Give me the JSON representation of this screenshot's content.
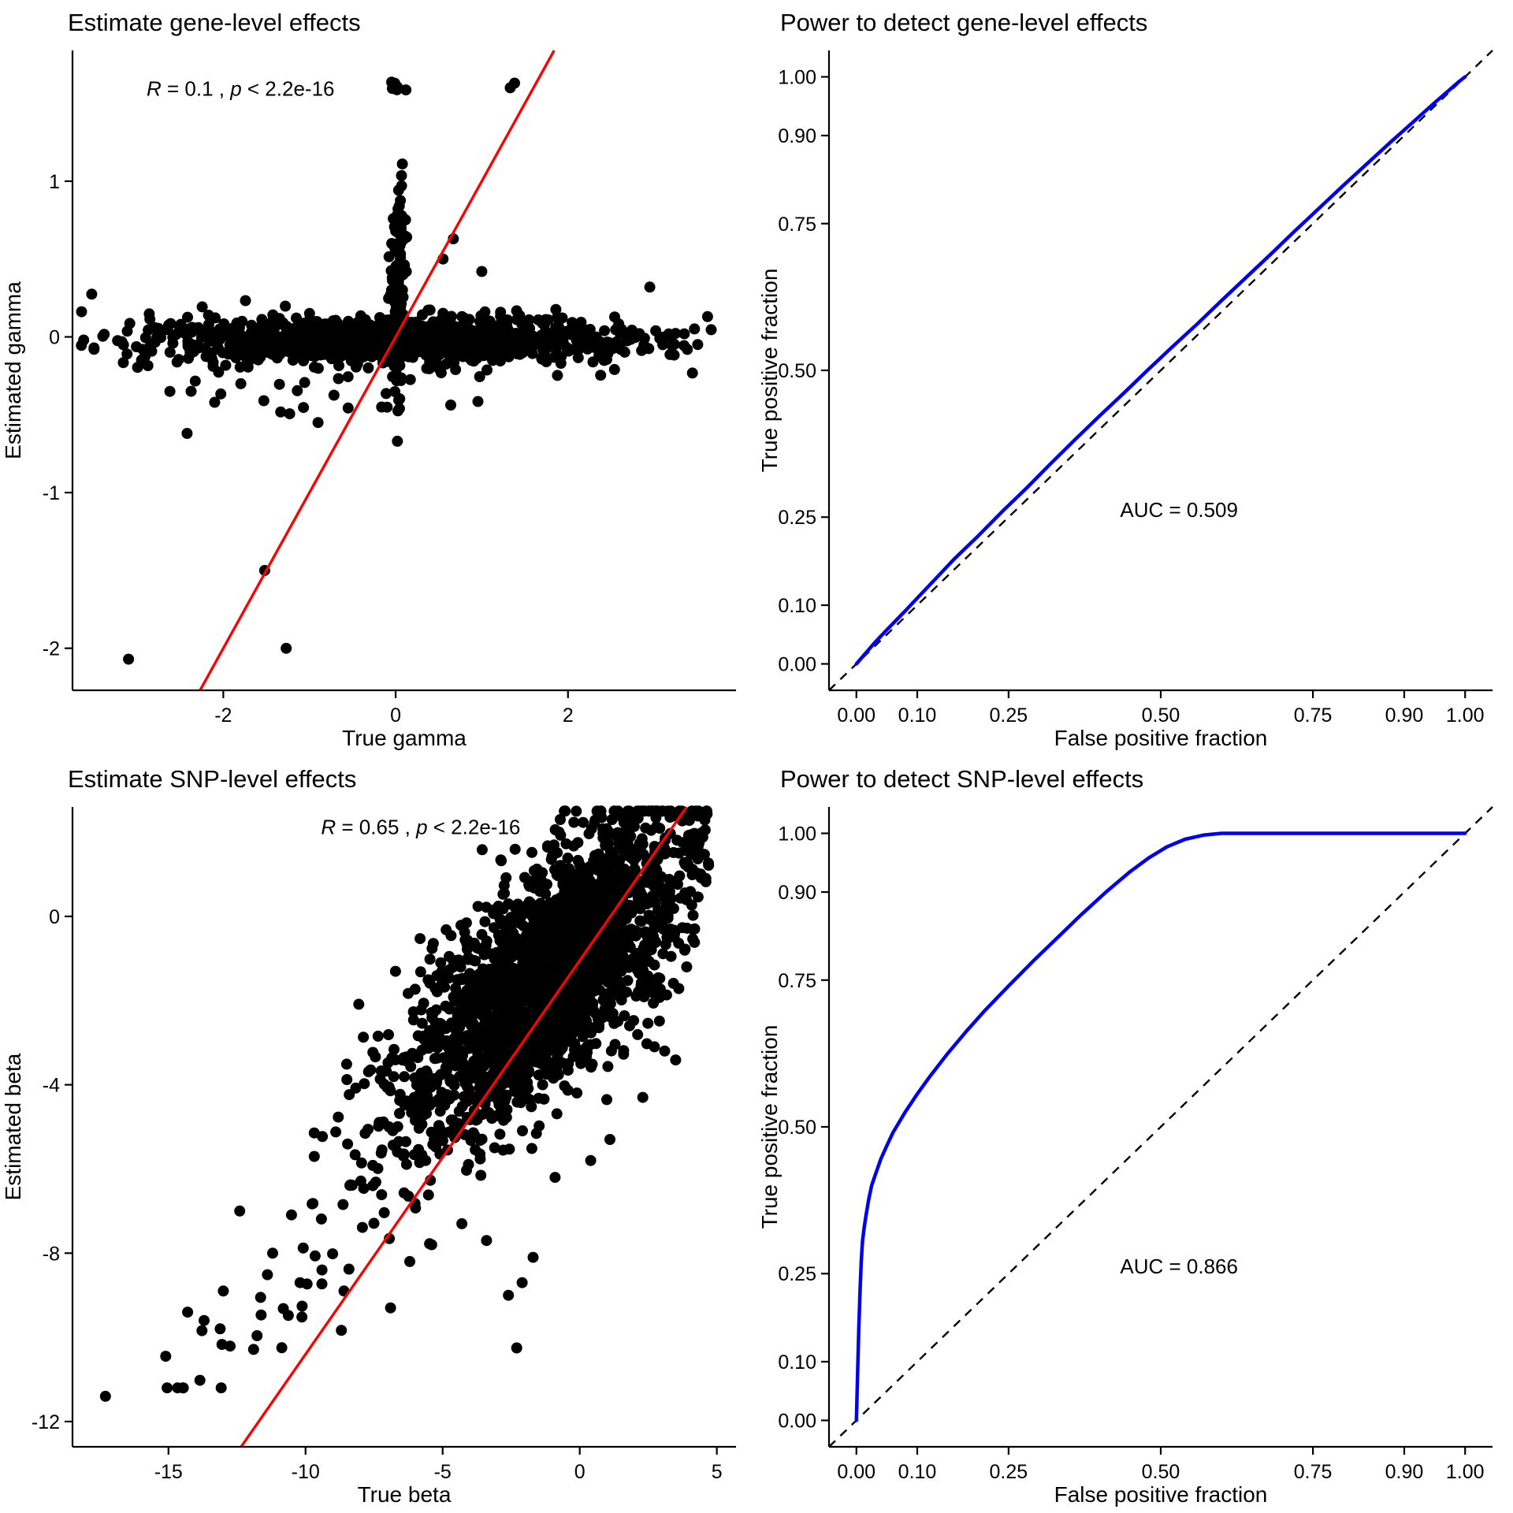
{
  "chart_data": [
    {
      "type": "scatter",
      "title": "Estimate gene-level effects",
      "xlabel": "True gamma",
      "ylabel": "Estimated gamma",
      "xlim": [
        -3.75,
        3.95
      ],
      "ylim": [
        -2.27,
        1.84
      ],
      "xticks": [
        {
          "v": -2,
          "l": "-2"
        },
        {
          "v": 0,
          "l": "0"
        },
        {
          "v": 2,
          "l": "2"
        }
      ],
      "yticks": [
        {
          "v": -2,
          "l": "-2"
        },
        {
          "v": -1,
          "l": "-1"
        },
        {
          "v": 0,
          "l": "0"
        },
        {
          "v": 1,
          "l": "1"
        }
      ],
      "annotation": {
        "parts": [
          {
            "t": "R",
            "i": true
          },
          {
            "t": " = 0.1 , "
          },
          {
            "t": "p",
            "i": true
          },
          {
            "t": " < 2.2e-16"
          }
        ],
        "x": -1.8,
        "y": 1.55
      },
      "fit_line": {
        "from": [
          -2.27,
          -2.27
        ],
        "to": [
          1.84,
          1.84
        ],
        "color": "#FF0000"
      },
      "point_color": "#000000",
      "point_radius": 7,
      "clusters": [
        {
          "n": 950,
          "seed": 11,
          "kind": "xy",
          "x": {
            "dist": "normal",
            "mean": 0,
            "sd": 1.25,
            "clip": [
              -3.6,
              3.7
            ]
          },
          "y": {
            "dist": "normal",
            "mean": -0.02,
            "sd": 0.07,
            "clip": [
              -0.35,
              0.28
            ]
          }
        },
        {
          "n": 260,
          "seed": 12,
          "kind": "xy",
          "x": {
            "dist": "normal",
            "mean": 0,
            "sd": 2.0,
            "clip": [
              -3.65,
              3.78
            ]
          },
          "y": {
            "dist": "normal",
            "mean": -0.03,
            "sd": 0.09,
            "clip": [
              -0.42,
              0.3
            ]
          }
        },
        {
          "n": 120,
          "seed": 13,
          "kind": "xy",
          "x": {
            "dist": "normal",
            "mean": 0.03,
            "sd": 0.04,
            "clip": [
              -0.12,
              0.18
            ]
          },
          "y": {
            "dist": "normal",
            "mean": 0.18,
            "sd": 0.38,
            "clip": [
              -0.66,
              1.3
            ]
          }
        },
        {
          "n": 14,
          "seed": 14,
          "kind": "xy",
          "x": {
            "dist": "normal",
            "mean": 0.04,
            "sd": 0.05,
            "clip": [
              -0.1,
              0.2
            ]
          },
          "y": {
            "dist": "uniform",
            "min": 0.35,
            "max": 0.78
          }
        },
        {
          "n": 7,
          "seed": 15,
          "kind": "xy",
          "x": {
            "dist": "uniform",
            "min": -0.05,
            "max": 0.13
          },
          "y": {
            "dist": "uniform",
            "min": 1.55,
            "max": 1.67
          }
        },
        {
          "n": 22,
          "seed": 16,
          "kind": "xy",
          "x": {
            "dist": "normal",
            "mean": -0.7,
            "sd": 1.0,
            "clip": [
              -2.7,
              1.6
            ]
          },
          "y": {
            "dist": "uniform",
            "min": -0.5,
            "max": -0.2
          }
        }
      ],
      "outliers": [
        [
          -3.1,
          -2.07
        ],
        [
          -1.27,
          -2.0
        ],
        [
          -1.52,
          -1.5
        ],
        [
          1.33,
          1.6
        ],
        [
          1.38,
          1.63
        ],
        [
          -2.42,
          -0.62
        ],
        [
          0.02,
          -0.67
        ],
        [
          0.67,
          0.63
        ],
        [
          -2.1,
          -0.42
        ],
        [
          -2.62,
          -0.35
        ],
        [
          3.62,
          0.13
        ],
        [
          3.35,
          0.02
        ],
        [
          -3.5,
          -0.08
        ],
        [
          -3.62,
          -0.02
        ],
        [
          2.95,
          0.32
        ],
        [
          3.1,
          -0.05
        ],
        [
          0.55,
          0.5
        ],
        [
          -0.9,
          -0.55
        ],
        [
          1.0,
          0.42
        ],
        [
          0.08,
          0.75
        ],
        [
          0.0,
          0.68
        ]
      ]
    },
    {
      "type": "line",
      "title": "Power to detect gene-level effects",
      "xlabel": "False positive fraction",
      "ylabel": "True positive fraction",
      "xlim": [
        -0.045,
        1.045
      ],
      "ylim": [
        -0.045,
        1.045
      ],
      "xticks": [
        {
          "v": 0,
          "l": "0.00"
        },
        {
          "v": 0.1,
          "l": "0.10"
        },
        {
          "v": 0.25,
          "l": "0.25"
        },
        {
          "v": 0.5,
          "l": "0.50"
        },
        {
          "v": 0.75,
          "l": "0.75"
        },
        {
          "v": 0.9,
          "l": "0.90"
        },
        {
          "v": 1,
          "l": "1.00"
        }
      ],
      "yticks": [
        {
          "v": 0,
          "l": "0.00"
        },
        {
          "v": 0.1,
          "l": "0.10"
        },
        {
          "v": 0.25,
          "l": "0.25"
        },
        {
          "v": 0.5,
          "l": "0.50"
        },
        {
          "v": 0.75,
          "l": "0.75"
        },
        {
          "v": 0.9,
          "l": "0.90"
        },
        {
          "v": 1,
          "l": "1.00"
        }
      ],
      "annotation": {
        "parts": [
          {
            "t": "AUC = 0.509"
          }
        ],
        "x": 0.53,
        "y": 0.25
      },
      "ref_line": {
        "from": [
          -0.045,
          -0.045
        ],
        "to": [
          1.045,
          1.045
        ],
        "dashed": true
      },
      "auc": 0.509,
      "series": [
        {
          "name": "ROC",
          "color": "#0000EE",
          "width": 4.5,
          "points": [
            [
              0,
              0
            ],
            [
              0.01,
              0.012
            ],
            [
              0.03,
              0.036
            ],
            [
              0.05,
              0.058
            ],
            [
              0.08,
              0.09
            ],
            [
              0.1,
              0.112
            ],
            [
              0.13,
              0.145
            ],
            [
              0.16,
              0.178
            ],
            [
              0.2,
              0.218
            ],
            [
              0.24,
              0.26
            ],
            [
              0.28,
              0.3
            ],
            [
              0.32,
              0.342
            ],
            [
              0.36,
              0.383
            ],
            [
              0.4,
              0.423
            ],
            [
              0.44,
              0.462
            ],
            [
              0.48,
              0.502
            ],
            [
              0.52,
              0.541
            ],
            [
              0.56,
              0.579
            ],
            [
              0.6,
              0.619
            ],
            [
              0.64,
              0.658
            ],
            [
              0.68,
              0.697
            ],
            [
              0.72,
              0.737
            ],
            [
              0.76,
              0.776
            ],
            [
              0.8,
              0.815
            ],
            [
              0.84,
              0.853
            ],
            [
              0.88,
              0.891
            ],
            [
              0.92,
              0.928
            ],
            [
              0.95,
              0.956
            ],
            [
              0.97,
              0.974
            ],
            [
              0.99,
              0.992
            ],
            [
              1,
              1
            ]
          ]
        }
      ]
    },
    {
      "type": "scatter",
      "title": "Estimate SNP-level effects",
      "xlabel": "True beta",
      "ylabel": "Estimated beta",
      "xlim": [
        -18.5,
        5.7
      ],
      "ylim": [
        -12.6,
        2.6
      ],
      "xticks": [
        {
          "v": -15,
          "l": "-15"
        },
        {
          "v": -10,
          "l": "-10"
        },
        {
          "v": -5,
          "l": "-5"
        },
        {
          "v": 0,
          "l": "0"
        },
        {
          "v": 5,
          "l": "5"
        }
      ],
      "yticks": [
        {
          "v": 0,
          "l": "0"
        },
        {
          "v": -4,
          "l": "-4"
        },
        {
          "v": -8,
          "l": "-8"
        },
        {
          "v": -12,
          "l": "-12"
        }
      ],
      "annotation": {
        "parts": [
          {
            "t": "R",
            "i": true
          },
          {
            "t": " = 0.65 , "
          },
          {
            "t": "p",
            "i": true
          },
          {
            "t": " < 2.2e-16"
          }
        ],
        "x": -5.8,
        "y": 1.95
      },
      "fit_line": {
        "from": [
          -12.35,
          -12.6
        ],
        "to": [
          3.9,
          2.6
        ],
        "color": "#FF0000"
      },
      "point_color": "#000000",
      "point_radius": 7,
      "clusters": [
        {
          "n": 2100,
          "seed": 31,
          "kind": "linear",
          "x": {
            "dist": "normal",
            "mean": -1.0,
            "sd": 2.7,
            "clip": [
              -9.8,
              4.7
            ]
          },
          "slope": 0.52,
          "intercept": -0.7,
          "noise_sd": 1.35,
          "yclip": [
            -8.8,
            2.5
          ]
        },
        {
          "n": 140,
          "seed": 32,
          "kind": "linear",
          "x": {
            "dist": "normal",
            "mean": -2.5,
            "sd": 3.4,
            "clip": [
              -12.5,
              4.5
            ]
          },
          "slope": 0.6,
          "intercept": -1.2,
          "noise_sd": 1.8,
          "yclip": [
            -10.0,
            2.3
          ]
        },
        {
          "n": 46,
          "seed": 33,
          "kind": "linear",
          "x": {
            "dist": "uniform",
            "min": -15.2,
            "max": -6.0
          },
          "slope": 0.76,
          "intercept": -0.8,
          "noise_sd": 0.85,
          "yclip": [
            -11.2,
            -3.2
          ]
        }
      ],
      "outliers": [
        [
          -17.3,
          -11.4
        ],
        [
          -15.1,
          -10.45
        ],
        [
          -14.3,
          -9.4
        ],
        [
          -13.7,
          -9.6
        ],
        [
          -13.0,
          -8.9
        ],
        [
          -2.3,
          -10.25
        ],
        [
          -2.6,
          -9.0
        ],
        [
          -2.1,
          -8.7
        ],
        [
          -1.7,
          -8.1
        ],
        [
          -3.4,
          -7.7
        ],
        [
          -4.3,
          -7.3
        ],
        [
          -5.4,
          -7.8
        ],
        [
          -0.9,
          -6.2
        ],
        [
          0.4,
          -5.8
        ],
        [
          1.1,
          -5.3
        ],
        [
          2.3,
          -4.3
        ],
        [
          3.1,
          -3.2
        ],
        [
          4.6,
          0.9
        ],
        [
          4.4,
          1.5
        ],
        [
          3.9,
          -1.2
        ],
        [
          -12.4,
          -7.0
        ],
        [
          -11.2,
          -8.0
        ],
        [
          -10.2,
          -8.7
        ],
        [
          -9.4,
          -8.4
        ],
        [
          -8.6,
          -8.9
        ],
        [
          -6.9,
          -9.3
        ],
        [
          -6.2,
          -8.2
        ],
        [
          1.6,
          2.3
        ],
        [
          2.4,
          2.1
        ],
        [
          0.8,
          2.35
        ]
      ]
    },
    {
      "type": "line",
      "title": "Power to detect SNP-level effects",
      "xlabel": "False positive fraction",
      "ylabel": "True positive fraction",
      "xlim": [
        -0.045,
        1.045
      ],
      "ylim": [
        -0.045,
        1.045
      ],
      "xticks": [
        {
          "v": 0,
          "l": "0.00"
        },
        {
          "v": 0.1,
          "l": "0.10"
        },
        {
          "v": 0.25,
          "l": "0.25"
        },
        {
          "v": 0.5,
          "l": "0.50"
        },
        {
          "v": 0.75,
          "l": "0.75"
        },
        {
          "v": 0.9,
          "l": "0.90"
        },
        {
          "v": 1,
          "l": "1.00"
        }
      ],
      "yticks": [
        {
          "v": 0,
          "l": "0.00"
        },
        {
          "v": 0.1,
          "l": "0.10"
        },
        {
          "v": 0.25,
          "l": "0.25"
        },
        {
          "v": 0.5,
          "l": "0.50"
        },
        {
          "v": 0.75,
          "l": "0.75"
        },
        {
          "v": 0.9,
          "l": "0.90"
        },
        {
          "v": 1,
          "l": "1.00"
        }
      ],
      "annotation": {
        "parts": [
          {
            "t": "AUC = 0.866"
          }
        ],
        "x": 0.53,
        "y": 0.25
      },
      "ref_line": {
        "from": [
          -0.045,
          -0.045
        ],
        "to": [
          1.045,
          1.045
        ],
        "dashed": true
      },
      "auc": 0.866,
      "series": [
        {
          "name": "ROC",
          "color": "#0000EE",
          "width": 4.5,
          "points": [
            [
              0,
              0
            ],
            [
              0.002,
              0.08
            ],
            [
              0.004,
              0.16
            ],
            [
              0.006,
              0.22
            ],
            [
              0.008,
              0.27
            ],
            [
              0.01,
              0.305
            ],
            [
              0.013,
              0.33
            ],
            [
              0.016,
              0.35
            ],
            [
              0.02,
              0.375
            ],
            [
              0.025,
              0.4
            ],
            [
              0.03,
              0.415
            ],
            [
              0.04,
              0.445
            ],
            [
              0.05,
              0.468
            ],
            [
              0.06,
              0.49
            ],
            [
              0.08,
              0.525
            ],
            [
              0.1,
              0.556
            ],
            [
              0.12,
              0.585
            ],
            [
              0.15,
              0.625
            ],
            [
              0.18,
              0.662
            ],
            [
              0.21,
              0.697
            ],
            [
              0.25,
              0.74
            ],
            [
              0.29,
              0.782
            ],
            [
              0.33,
              0.822
            ],
            [
              0.37,
              0.862
            ],
            [
              0.41,
              0.9
            ],
            [
              0.45,
              0.935
            ],
            [
              0.48,
              0.958
            ],
            [
              0.51,
              0.977
            ],
            [
              0.54,
              0.99
            ],
            [
              0.57,
              0.997
            ],
            [
              0.6,
              1.0
            ],
            [
              0.65,
              1.0
            ],
            [
              0.75,
              1.0
            ],
            [
              0.85,
              1.0
            ],
            [
              1,
              1
            ]
          ]
        }
      ]
    }
  ]
}
